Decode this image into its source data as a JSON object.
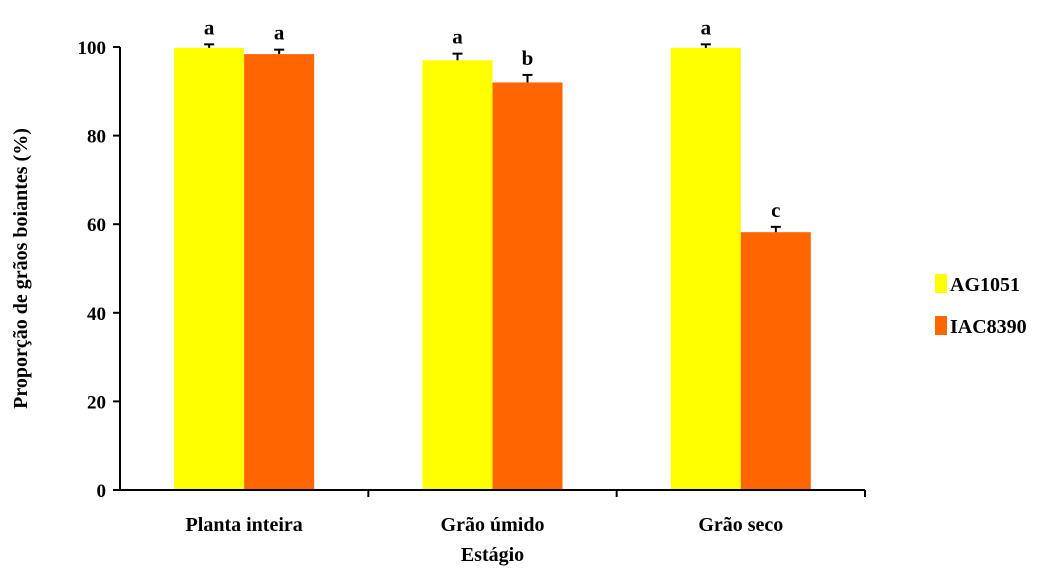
{
  "chart_data": {
    "type": "bar",
    "categories": [
      "Planta inteira",
      "Grão úmido",
      "Grão seco"
    ],
    "series": [
      {
        "name": "AG1051",
        "color": "#FFFF00",
        "values": [
          99.8,
          97.0,
          99.8
        ],
        "errors": [
          0.8,
          1.5,
          0.8
        ],
        "letters": [
          "a",
          "a",
          "a"
        ]
      },
      {
        "name": "IAC8390",
        "color": "#FF6600",
        "values": [
          98.4,
          92.0,
          58.2
        ],
        "errors": [
          1.0,
          1.7,
          1.2
        ],
        "letters": [
          "a",
          "b",
          "c"
        ]
      }
    ],
    "xlabel": "Estágio",
    "ylabel": "Proporção de grãos boiantes (%)",
    "ylim": [
      0,
      100
    ],
    "yticks": [
      0,
      20,
      40,
      60,
      80,
      100
    ],
    "grid": false,
    "legend_position": "right"
  }
}
